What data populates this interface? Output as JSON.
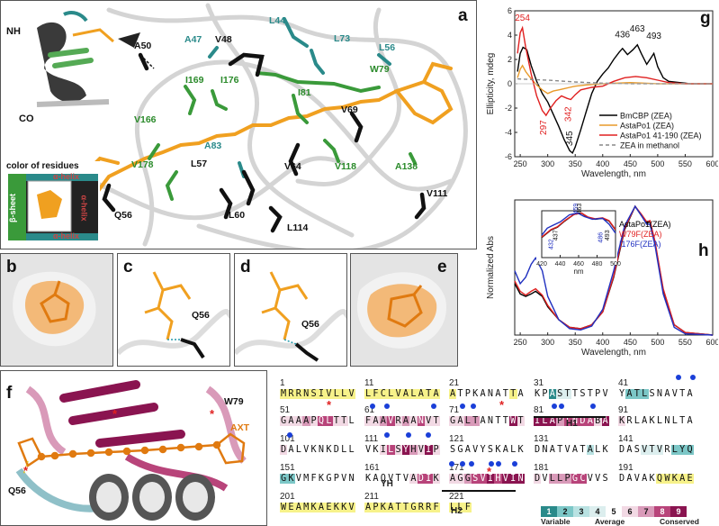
{
  "panels": {
    "a": {
      "label": "a",
      "nh": "NH",
      "co": "CO",
      "legend_title": "color of residues",
      "legend_sheet": "β-sheet",
      "legend_helix_top": "α-helix",
      "legend_helix_right": "α-helix",
      "legend_helix_bottom": "α-helix",
      "residues_green": [
        "A47",
        "I169",
        "I176",
        "I81",
        "V166",
        "V178",
        "V118",
        "A138",
        "W79",
        "A83",
        "L56"
      ],
      "residues_teal": [
        "L44",
        "L73"
      ],
      "residues_black": [
        "A50",
        "V48",
        "V69",
        "L57",
        "L60",
        "V64",
        "L114",
        "V111",
        "Q56"
      ]
    },
    "b": {
      "label": "b"
    },
    "c": {
      "label": "c",
      "residue": "Q56"
    },
    "d": {
      "label": "d",
      "residue": "Q56"
    },
    "e": {
      "label": "e"
    },
    "f": {
      "label": "f",
      "res1": "I176",
      "res2": "W79",
      "res3": "Q56",
      "ligand": "AXT",
      "star": "*"
    },
    "g": {
      "label": "g"
    },
    "h": {
      "label": "h"
    }
  },
  "chart_data": [
    {
      "type": "line",
      "panel": "g",
      "xlabel": "Wavelength, nm",
      "ylabel": "Ellipticity, mdeg",
      "xlim": [
        240,
        600
      ],
      "ylim": [
        -6,
        6
      ],
      "xticks": [
        250,
        300,
        350,
        400,
        450,
        500,
        550,
        600
      ],
      "yticks": [
        -6,
        -4,
        -2,
        0,
        2,
        4,
        6
      ],
      "annotations_black": [
        "436",
        "463",
        "493",
        "345"
      ],
      "annotations_red": [
        "254",
        "297",
        "342"
      ],
      "legend": "top-right",
      "series": [
        {
          "name": "BmCBP (ZEA)",
          "color": "#000000",
          "x": [
            245,
            250,
            255,
            262,
            270,
            280,
            290,
            300,
            310,
            320,
            330,
            340,
            345,
            350,
            360,
            370,
            380,
            390,
            400,
            410,
            420,
            430,
            436,
            445,
            455,
            463,
            470,
            480,
            486,
            493,
            500,
            510,
            520,
            540,
            560,
            580,
            600
          ],
          "y": [
            1.0,
            2.5,
            3.0,
            2.8,
            1.5,
            0.2,
            -0.8,
            -1.5,
            -2.5,
            -3.5,
            -4.6,
            -5.5,
            -5.7,
            -5.2,
            -3.8,
            -2.3,
            -0.8,
            0.2,
            0.8,
            1.3,
            2.0,
            2.6,
            2.9,
            2.4,
            2.8,
            3.2,
            2.5,
            1.6,
            2.0,
            2.5,
            1.4,
            0.5,
            0.2,
            0.1,
            0.0,
            0.0,
            0.0
          ]
        },
        {
          "name": "AstaPo1 (ZEA)",
          "color": "#e89a2a",
          "x": [
            245,
            250,
            254,
            260,
            270,
            280,
            290,
            300,
            310,
            320,
            330,
            340,
            350,
            370,
            400,
            450,
            500,
            550,
            600
          ],
          "y": [
            0.5,
            1.2,
            1.5,
            1.0,
            0.4,
            -0.1,
            -0.5,
            -0.8,
            -0.6,
            -0.5,
            -0.4,
            -0.3,
            -0.2,
            -0.1,
            0.0,
            0.1,
            0.0,
            0.0,
            0.0
          ]
        },
        {
          "name": "AstaPo1 41-190 (ZEA)",
          "color": "#e02020",
          "x": [
            245,
            250,
            254,
            260,
            270,
            280,
            290,
            297,
            305,
            315,
            325,
            335,
            342,
            350,
            360,
            380,
            400,
            420,
            440,
            460,
            480,
            500,
            520,
            550,
            600
          ],
          "y": [
            2.5,
            4.2,
            4.6,
            3.0,
            0.8,
            -1.0,
            -2.2,
            -2.6,
            -2.0,
            -1.4,
            -1.0,
            -1.2,
            -1.3,
            -0.9,
            -0.5,
            -0.3,
            -0.2,
            0.2,
            0.5,
            0.6,
            0.5,
            0.3,
            0.1,
            0.0,
            0.0
          ]
        },
        {
          "name": "ZEA in methanol",
          "color": "#888888",
          "dashed": true,
          "x": [
            245,
            300,
            350,
            400,
            450,
            500,
            550,
            600
          ],
          "y": [
            0.4,
            0.3,
            0.15,
            0.05,
            0.0,
            0.0,
            0.0,
            0.0
          ]
        }
      ]
    },
    {
      "type": "line",
      "panel": "h",
      "xlabel": "Wavelength, nm",
      "ylabel": "Normalized Abs",
      "xlim": [
        240,
        600
      ],
      "ylim": [
        0,
        1.05
      ],
      "xticks": [
        250,
        300,
        350,
        400,
        450,
        500,
        550,
        600
      ],
      "legend": "top-right",
      "series": [
        {
          "name": "AstaPo1(ZEA)",
          "color": "#000000",
          "x": [
            240,
            250,
            260,
            270,
            278,
            290,
            300,
            320,
            340,
            360,
            380,
            400,
            420,
            440,
            459,
            470,
            480,
            486,
            495,
            510,
            530,
            550,
            600
          ],
          "y": [
            0.4,
            0.32,
            0.3,
            0.32,
            0.34,
            0.3,
            0.22,
            0.12,
            0.06,
            0.05,
            0.08,
            0.18,
            0.45,
            0.82,
            1.0,
            0.93,
            0.87,
            0.88,
            0.72,
            0.35,
            0.08,
            0.02,
            0.0
          ]
        },
        {
          "name": "W79F(ZEA)",
          "color": "#e02020",
          "x": [
            240,
            250,
            260,
            270,
            278,
            290,
            300,
            320,
            340,
            360,
            380,
            400,
            420,
            440,
            459,
            470,
            480,
            486,
            495,
            510,
            530,
            550,
            600
          ],
          "y": [
            0.42,
            0.34,
            0.31,
            0.34,
            0.36,
            0.31,
            0.23,
            0.12,
            0.06,
            0.05,
            0.08,
            0.18,
            0.46,
            0.83,
            1.0,
            0.94,
            0.88,
            0.89,
            0.73,
            0.36,
            0.08,
            0.02,
            0.0
          ]
        },
        {
          "name": "I176F(ZEA)",
          "color": "#2030c0",
          "x": [
            240,
            250,
            260,
            270,
            278,
            290,
            300,
            320,
            340,
            360,
            380,
            400,
            420,
            440,
            459,
            470,
            480,
            486,
            495,
            510,
            530,
            550,
            600
          ],
          "y": [
            0.5,
            0.4,
            0.45,
            0.55,
            0.6,
            0.5,
            0.3,
            0.12,
            0.05,
            0.04,
            0.07,
            0.2,
            0.5,
            0.85,
            1.0,
            0.93,
            0.86,
            0.86,
            0.7,
            0.32,
            0.06,
            0.01,
            0.0
          ]
        }
      ]
    },
    {
      "type": "line",
      "panel": "h-inset",
      "xlabel": "nm",
      "xlim": [
        420,
        500
      ],
      "ylim": [
        0,
        1.05
      ],
      "xticks": [
        420,
        440,
        460,
        480,
        500
      ],
      "annotations_blue": [
        "432",
        "459",
        "486"
      ],
      "annotations_black": [
        "437",
        "463",
        "493"
      ],
      "series": [
        {
          "name": "AstaPo1(ZEA)",
          "color": "#000000",
          "x": [
            420,
            430,
            437,
            445,
            455,
            463,
            470,
            478,
            486,
            493,
            500
          ],
          "y": [
            0.45,
            0.62,
            0.68,
            0.82,
            0.97,
            1.0,
            0.9,
            0.86,
            0.88,
            0.82,
            0.62
          ]
        },
        {
          "name": "W79F(ZEA)",
          "color": "#e02020",
          "x": [
            420,
            430,
            437,
            445,
            455,
            463,
            470,
            478,
            486,
            493,
            500
          ],
          "y": [
            0.46,
            0.63,
            0.69,
            0.83,
            0.97,
            1.0,
            0.91,
            0.87,
            0.89,
            0.83,
            0.63
          ]
        },
        {
          "name": "I176F(ZEA)",
          "color": "#2030c0",
          "x": [
            420,
            426,
            432,
            440,
            450,
            459,
            466,
            475,
            486,
            493,
            500
          ],
          "y": [
            0.5,
            0.66,
            0.72,
            0.8,
            0.96,
            1.0,
            0.92,
            0.86,
            0.88,
            0.75,
            0.55
          ]
        }
      ]
    }
  ],
  "sequence": {
    "rows": [
      [
        {
          "n": "1",
          "s": "MRRNSIVLLV",
          "c": "yyyyyyyyyy"
        },
        {
          "n": "11",
          "s": "LFCLVALATA",
          "c": "yyyyyyyyyy"
        },
        {
          "n": "21",
          "s": "ATPKANATTA",
          "c": "y5555555y5"
        },
        {
          "n": "31",
          "s": "KPASTTSTPV",
          "c": "5514455555"
        },
        {
          "n": "41",
          "s": "YATLSNAVTA",
          "c": "5222555555"
        }
      ],
      [
        {
          "n": "51",
          "s": "GAAAPQLTTL",
          "c": "6667688665"
        },
        {
          "n": "61",
          "s": "FAAVRAANVT",
          "c": "6678676866"
        },
        {
          "n": "71",
          "s": "GALTANTTWT",
          "c": "6677555596"
        },
        {
          "n": "81",
          "s": "ILAPTNDABA",
          "c": "9997888869"
        },
        {
          "n": "91",
          "s": "KRLAKLNLTA",
          "c": "6555555555"
        }
      ],
      [
        {
          "n": "101",
          "s": "DALVKNKDLL",
          "c": "6555555555"
        },
        {
          "n": "111",
          "s": "VKILSYHVIP",
          "c": "5568697696"
        },
        {
          "n": "121",
          "s": "SGAVYSKALK",
          "c": "5555555555"
        },
        {
          "n": "131",
          "s": "DNATVATALK",
          "c": "5555555355"
        },
        {
          "n": "141",
          "s": "DASVTVRLYQ",
          "c": "5554445222"
        }
      ],
      [
        {
          "n": "151",
          "s": "GKVMFKGPVN",
          "c": "2255555555"
        },
        {
          "n": "161",
          "s": "KAQVTVADIK",
          "c": "5555556886"
        },
        {
          "n": "171",
          "s": "AGGSVIHVIN",
          "c": "6678898999"
        },
        {
          "n": "181",
          "s": "DVLLPGCVVS",
          "c": "6577788555"
        },
        {
          "n": "191",
          "s": "DAVAKQWKAE",
          "c": "55555yyyyy"
        }
      ],
      [
        {
          "n": "201",
          "s": "WEAMKAEKKV",
          "c": "yyyyyyyyyy"
        },
        {
          "n": "211",
          "s": "APKATTGRRF",
          "c": "yyyyyyyyyy"
        },
        {
          "n": "221",
          "s": "LLF",
          "c": "yyy"
        }
      ]
    ],
    "helix_labels": [
      "H1",
      "YH",
      "H2"
    ],
    "scale_labels": [
      "1",
      "2",
      "3",
      "4",
      "5",
      "6",
      "7",
      "8",
      "9"
    ],
    "scale_variable": "Variable",
    "scale_average": "Average",
    "scale_conserved": "Conserved",
    "star": "*"
  }
}
